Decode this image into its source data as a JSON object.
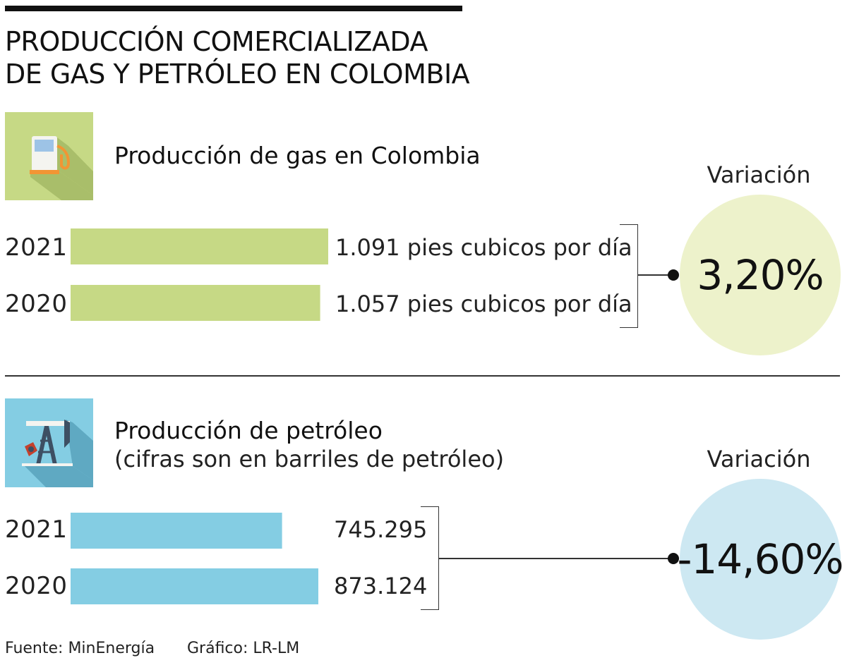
{
  "title_line1": "PRODUCCIÓN COMERCIALIZADA",
  "title_line2": "DE GAS Y PETRÓLEO EN COLOMBIA",
  "colors": {
    "gas_bar": "#c6d985",
    "gas_icon_bg": "#c6d985",
    "gas_circle": "#edf2cb",
    "oil_bar": "#84cde3",
    "oil_icon_bg": "#84cde3",
    "oil_circle": "#cde8f2"
  },
  "gas": {
    "title": "Producción de gas en Colombia",
    "icon": "gas-pump-icon",
    "variation_label": "Variación",
    "variation_value": "3,20%"
  },
  "oil": {
    "title": "Producción de petróleo",
    "subtitle": "(cifras son en barriles de petróleo)",
    "icon": "oil-pumpjack-icon",
    "variation_label": "Variación",
    "variation_value": "-14,60%"
  },
  "chart_data": [
    {
      "type": "bar",
      "orientation": "horizontal",
      "title": "Producción de gas en Colombia",
      "categories": [
        "2021",
        "2020"
      ],
      "values": [
        1091,
        1057
      ],
      "value_labels": [
        "1.091 pies cubicos por día",
        "1.057 pies cubicos por día"
      ],
      "variation": "3,20%"
    },
    {
      "type": "bar",
      "orientation": "horizontal",
      "title": "Producción de petróleo",
      "subtitle": "(cifras son en barriles de petróleo)",
      "categories": [
        "2021",
        "2020"
      ],
      "values": [
        745295,
        873124
      ],
      "value_labels": [
        "745.295",
        "873.124"
      ],
      "variation": "-14,60%"
    }
  ],
  "footer": {
    "source": "Fuente: MinEnergía",
    "credit": "Gráfico: LR-LM"
  }
}
